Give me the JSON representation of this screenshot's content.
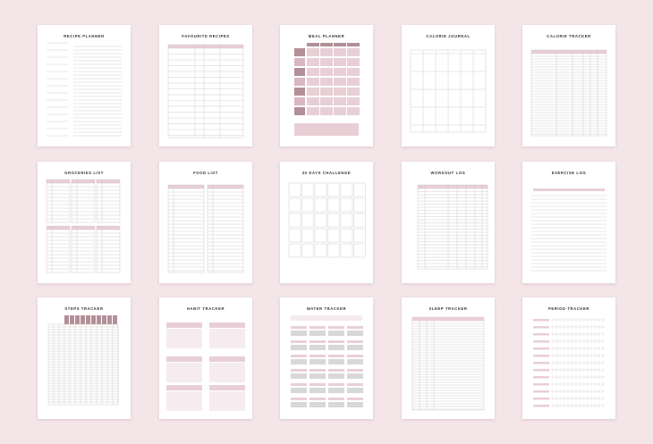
{
  "pages": [
    {
      "title": "RECIPE PLANNER"
    },
    {
      "title": "FAVOURITE RECIPES"
    },
    {
      "title": "MEAL PLANNER"
    },
    {
      "title": "CALORIE JOURNAL"
    },
    {
      "title": "CALORIE TRACKER"
    },
    {
      "title": "GROCERIES LIST"
    },
    {
      "title": "FOOD LIST"
    },
    {
      "title": "30 DAYS CHALLENGE"
    },
    {
      "title": "WORKOUT LOG"
    },
    {
      "title": "EXERCISE LOG"
    },
    {
      "title": "STEPS TRACKER"
    },
    {
      "title": "HABIT TRACKER"
    },
    {
      "title": "WATER TRACKER"
    },
    {
      "title": "SLEEP TRACKER"
    },
    {
      "title": "PERIOD TRACKER"
    }
  ]
}
